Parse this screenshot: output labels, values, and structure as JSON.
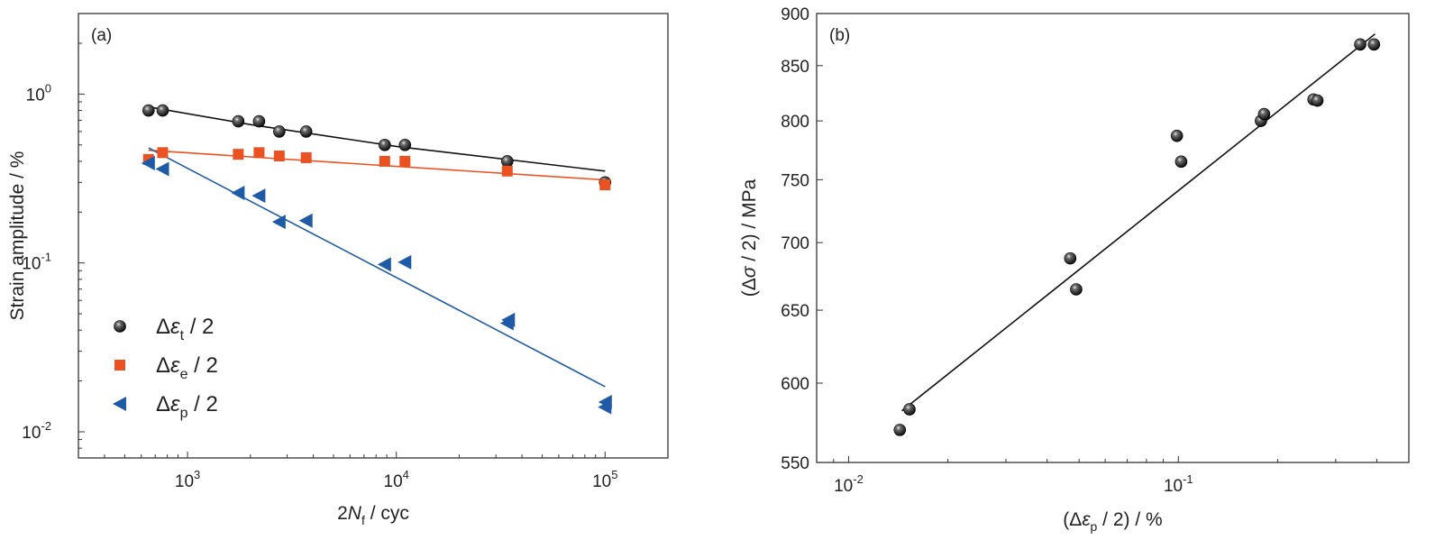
{
  "colors": {
    "black": "#111111",
    "orange": "#ec5122",
    "blue": "#1f5aa6",
    "axis": "#333333"
  },
  "chart_data": [
    {
      "type": "scatter",
      "panel_label": "(a)",
      "xlabel": {
        "main": "2",
        "italic": "N",
        "sub": "f",
        "rest": " / cyc"
      },
      "ylabel": "Strain amplitude / %",
      "xscale": "log",
      "yscale": "log",
      "xlim": [
        300,
        200000
      ],
      "ylim": [
        0.007,
        3
      ],
      "xticks": [
        {
          "value": 1000,
          "base": "10",
          "exp": "3"
        },
        {
          "value": 10000,
          "base": "10",
          "exp": "4"
        },
        {
          "value": 100000,
          "base": "10",
          "exp": "5"
        }
      ],
      "yticks": [
        {
          "value": 0.01,
          "base": "10",
          "exp": "-2"
        },
        {
          "value": 0.1,
          "base": "10",
          "exp": "-1"
        },
        {
          "value": 1,
          "base": "10",
          "exp": "0"
        }
      ],
      "legend_position": "bottom-left",
      "series": [
        {
          "name": "Δεt / 2",
          "legend": {
            "delta": "Δ",
            "eps": "ε",
            "sub": "t",
            "rest": " / 2"
          },
          "marker": "sphere",
          "color": "#111111",
          "x": [
            650,
            760,
            1750,
            2200,
            2750,
            3700,
            8800,
            11000,
            34000,
            100000
          ],
          "y": [
            0.8,
            0.8,
            0.69,
            0.69,
            0.6,
            0.6,
            0.5,
            0.5,
            0.4,
            0.3
          ],
          "fit": {
            "x": [
              650,
              2000,
              10000,
              100000
            ],
            "y": [
              0.84,
              0.66,
              0.49,
              0.35
            ]
          }
        },
        {
          "name": "Δεe / 2",
          "legend": {
            "delta": "Δ",
            "eps": "ε",
            "sub": "e",
            "rest": " / 2"
          },
          "marker": "square",
          "color": "#ec5122",
          "x": [
            650,
            760,
            1750,
            2200,
            2750,
            3700,
            8800,
            11000,
            34000,
            100000
          ],
          "y": [
            0.41,
            0.45,
            0.44,
            0.45,
            0.43,
            0.42,
            0.4,
            0.4,
            0.35,
            0.29
          ],
          "fit": {
            "x": [
              650,
              100000
            ],
            "y": [
              0.465,
              0.31
            ]
          }
        },
        {
          "name": "Δεp / 2",
          "legend": {
            "delta": "Δ",
            "eps": "ε",
            "sub": "p",
            "rest": " / 2"
          },
          "marker": "triangle-left",
          "color": "#1f5aa6",
          "x": [
            650,
            760,
            1750,
            2200,
            2750,
            3700,
            8800,
            11000,
            34000,
            34500,
            100000,
            100500
          ],
          "y": [
            0.39,
            0.36,
            0.26,
            0.25,
            0.175,
            0.178,
            0.098,
            0.101,
            0.044,
            0.046,
            0.014,
            0.015
          ],
          "fit": {
            "x": [
              650,
              100000
            ],
            "y": [
              0.48,
              0.0185
            ]
          }
        }
      ]
    },
    {
      "type": "scatter",
      "panel_label": "(b)",
      "xlabel": {
        "open": "(",
        "delta": "Δ",
        "eps": "ε",
        "sub": "p",
        "rest": " / 2) / %"
      },
      "ylabel": {
        "open": "(",
        "delta": "Δ",
        "sigma": "σ",
        "rest": " / 2) / MPa"
      },
      "xscale": "log",
      "yscale": "log",
      "xlim": [
        0.008,
        0.5
      ],
      "ylim": [
        550,
        900
      ],
      "xticks": [
        {
          "value": 0.01,
          "base": "10",
          "exp": "-2"
        },
        {
          "value": 0.1,
          "base": "10",
          "exp": "-1"
        }
      ],
      "yticks": [
        550,
        600,
        650,
        700,
        750,
        800,
        850,
        900
      ],
      "series": [
        {
          "marker": "sphere",
          "color": "#111111",
          "x": [
            0.0143,
            0.0153,
            0.047,
            0.049,
            0.099,
            0.102,
            0.178,
            0.182,
            0.257,
            0.264,
            0.356,
            0.392
          ],
          "y": [
            570,
            583,
            688,
            665,
            787,
            765,
            800,
            806,
            819,
            818,
            870,
            870
          ],
          "fit": {
            "x": [
              0.0145,
              0.395
            ],
            "y": [
              582,
              880
            ]
          }
        }
      ]
    }
  ]
}
